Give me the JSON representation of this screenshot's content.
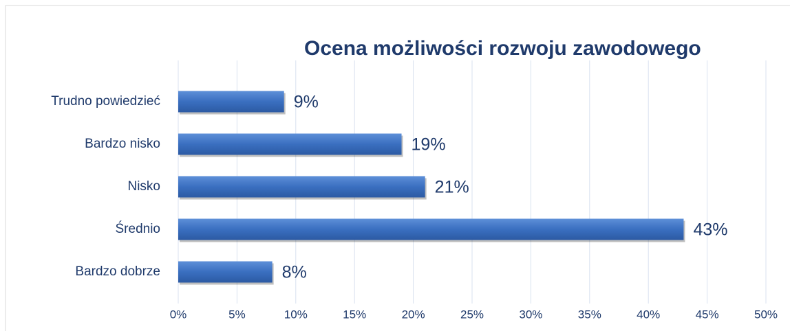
{
  "chart_data": {
    "type": "bar",
    "orientation": "horizontal",
    "title": "Ocena możliwości rozwoju zawodowego",
    "categories": [
      "Trudno powiedzieć",
      "Bardzo nisko",
      "Nisko",
      "Średnio",
      "Bardzo dobrze"
    ],
    "values": [
      9,
      19,
      21,
      43,
      8
    ],
    "value_labels": [
      "9%",
      "19%",
      "21%",
      "43%",
      "8%"
    ],
    "color": "#3a6fc0",
    "xlim": [
      0,
      50
    ],
    "xticks": [
      {
        "value": 0,
        "label": "0%"
      },
      {
        "value": 5,
        "label": "5%"
      },
      {
        "value": 10,
        "label": "10%"
      },
      {
        "value": 15,
        "label": "15%"
      },
      {
        "value": 20,
        "label": "20%"
      },
      {
        "value": 25,
        "label": "25%"
      },
      {
        "value": 30,
        "label": "30%"
      },
      {
        "value": 35,
        "label": "35%"
      },
      {
        "value": 40,
        "label": "40%"
      },
      {
        "value": 45,
        "label": "45%"
      },
      {
        "value": 50,
        "label": "50%"
      }
    ],
    "grid": true
  }
}
